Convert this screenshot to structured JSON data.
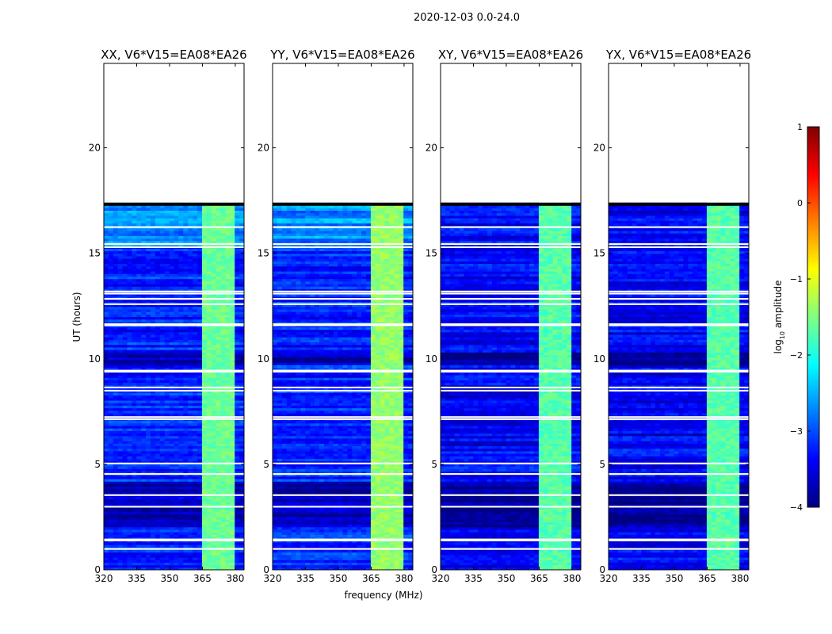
{
  "chart_data": {
    "type": "heatmap",
    "suptitle": "2020-12-03 0.0-24.0",
    "xlabel": "frequency (MHz)",
    "ylabel": "UT (hours)",
    "xlim": [
      320,
      384
    ],
    "ylim": [
      0,
      24
    ],
    "xticks": [
      320,
      335,
      350,
      365,
      380
    ],
    "yticks": [
      0,
      5,
      10,
      15,
      20
    ],
    "data_end_ut": 17.3,
    "rfi_band_mhz": [
      [
        364,
        368
      ],
      [
        369,
        373
      ],
      [
        374,
        379
      ]
    ],
    "panels": [
      {
        "title": "XX, V6*V15=EA08*EA26",
        "polarization": "XX",
        "baseline_level": -3.2,
        "rfi_level": -1.6
      },
      {
        "title": "YY, V6*V15=EA08*EA26",
        "polarization": "YY",
        "baseline_level": -3.2,
        "rfi_level": -1.4
      },
      {
        "title": "XY, V6*V15=EA08*EA26",
        "polarization": "XY",
        "baseline_level": -3.4,
        "rfi_level": -1.7
      },
      {
        "title": "YX, V6*V15=EA08*EA26",
        "polarization": "YX",
        "baseline_level": -3.4,
        "rfi_level": -1.7
      }
    ],
    "flagged_ut_hours": [
      0.95,
      1.35,
      1.4,
      2.95,
      3.5,
      4.5,
      5.0,
      7.1,
      7.2,
      8.45,
      8.6,
      9.35,
      9.4,
      11.55,
      11.6,
      12.55,
      12.8,
      13.05,
      13.15,
      15.25,
      15.4,
      16.2
    ],
    "colorbar": {
      "label": "log10 amplitude",
      "label_main": "log",
      "label_sub": "10",
      "label_tail": " amplitude",
      "range": [
        -4,
        1
      ],
      "ticks": [
        "1",
        "0",
        "−1",
        "−2",
        "−3",
        "−4"
      ],
      "colormap": "jet"
    }
  }
}
